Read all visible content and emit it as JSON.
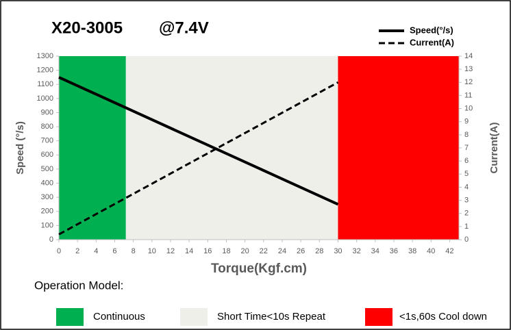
{
  "chart_data": {
    "type": "line",
    "title": "X20-3005",
    "subtitle": "@7.4V",
    "x_label": "Torque(Kgf.cm)",
    "y_label": "Speed (°/s)",
    "y2_label": "Current(A)",
    "x": [
      0,
      30
    ],
    "series": [
      {
        "name": "Speed(°/s)",
        "color": "#000000",
        "values": [
          1150,
          250
        ],
        "style": "solid"
      },
      {
        "name": "Current(A)",
        "color": "#000000",
        "values": [
          0.4,
          12
        ],
        "style": "dashed",
        "axis": "y2"
      }
    ],
    "xlim": [
      0,
      43
    ],
    "xticks": [
      0,
      2,
      4,
      6,
      8,
      10,
      12,
      14,
      16,
      18,
      20,
      22,
      24,
      26,
      28,
      30,
      32,
      34,
      36,
      38,
      40,
      42
    ],
    "ylim": [
      0,
      1300
    ],
    "yticks": [
      0,
      100,
      200,
      300,
      400,
      500,
      600,
      700,
      800,
      900,
      1000,
      1100,
      1200,
      1300
    ],
    "y2lim": [
      0,
      14
    ],
    "y2ticks": [
      0,
      1,
      2,
      3,
      4,
      5,
      6,
      7,
      8,
      9,
      10,
      11,
      12,
      13,
      14
    ],
    "legend_title": "Operation Model:",
    "regions": [
      {
        "name": "Continuous",
        "color": "#00b050",
        "x": [
          0,
          7.2
        ]
      },
      {
        "name": "Short Time<10s Repeat",
        "color": "#efefea",
        "x": [
          7.2,
          30
        ]
      },
      {
        "name": "<1s,60s Cool down",
        "color": "#ff0000",
        "x": [
          30,
          43
        ]
      }
    ]
  }
}
